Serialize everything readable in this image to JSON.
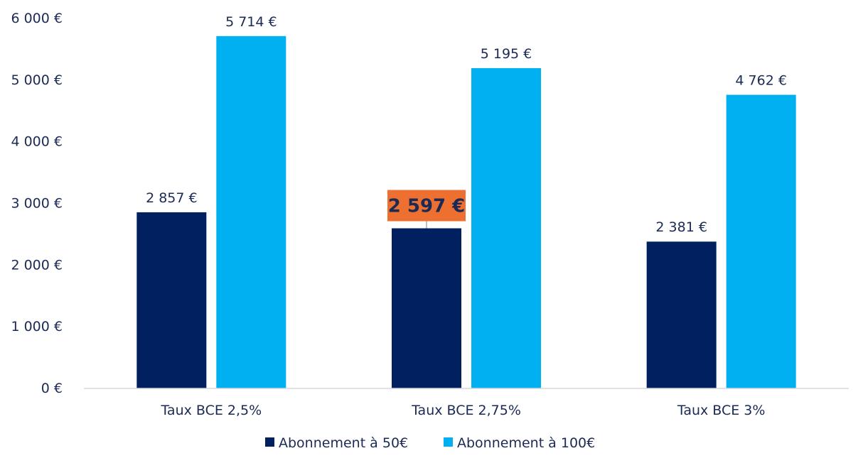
{
  "chart_data": {
    "type": "bar",
    "title": "",
    "xlabel": "",
    "ylabel": "",
    "categories": [
      "Taux BCE 2,5%",
      "Taux BCE 2,75%",
      "Taux BCE 3%"
    ],
    "series": [
      {
        "name": "Abonnement à 50€",
        "color": "#012060",
        "values": [
          2857,
          2597,
          2381
        ],
        "labels": [
          "2 857 €",
          "2 597 €",
          "2 381 €"
        ]
      },
      {
        "name": "Abonnement à 100€",
        "color": "#00b0f0",
        "values": [
          5714,
          5195,
          4762
        ],
        "labels": [
          "5 714 €",
          "5 195 €",
          "4 762 €"
        ]
      }
    ],
    "ylim": [
      0,
      6000
    ],
    "yticks": [
      0,
      1000,
      2000,
      3000,
      4000,
      5000,
      6000
    ],
    "ytick_labels": [
      "0 €",
      "1 000 €",
      "2 000 €",
      "3 000 €",
      "4 000 €",
      "5 000 €",
      "6 000 €"
    ],
    "grid": false,
    "legend_position": "bottom-center",
    "highlight": {
      "series_index": 0,
      "category_index": 1,
      "color": "#ed7031"
    }
  }
}
